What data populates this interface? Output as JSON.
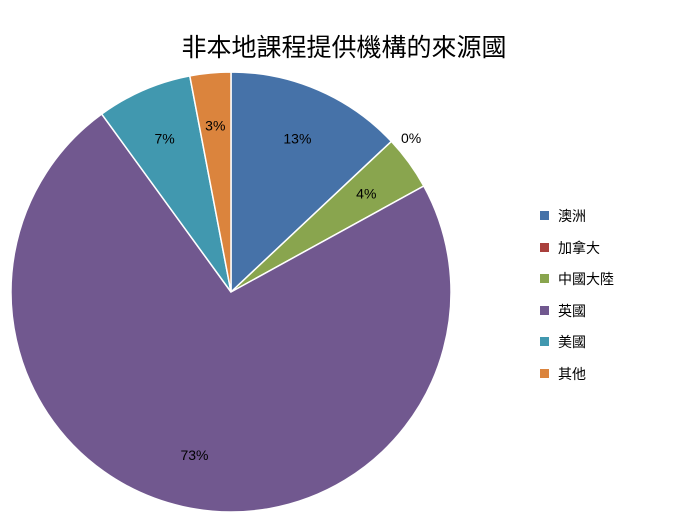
{
  "chart_data": {
    "type": "pie",
    "title": "非本地課程提供機構的來源國",
    "start_angle_deg": 0,
    "direction": "clockwise",
    "legend_position": "right",
    "slices": [
      {
        "label": "澳洲",
        "value": 13,
        "display": "13%",
        "color": "#4672A8"
      },
      {
        "label": "加拿大",
        "value": 0,
        "display": "0%",
        "color": "#A9403C"
      },
      {
        "label": "中國大陸",
        "value": 4,
        "display": "4%",
        "color": "#89A54E"
      },
      {
        "label": "英國",
        "value": 73,
        "display": "73%",
        "color": "#71588F"
      },
      {
        "label": "美國",
        "value": 7,
        "display": "7%",
        "color": "#4198AF"
      },
      {
        "label": "其他",
        "value": 3,
        "display": "3%",
        "color": "#DB843D"
      }
    ]
  }
}
